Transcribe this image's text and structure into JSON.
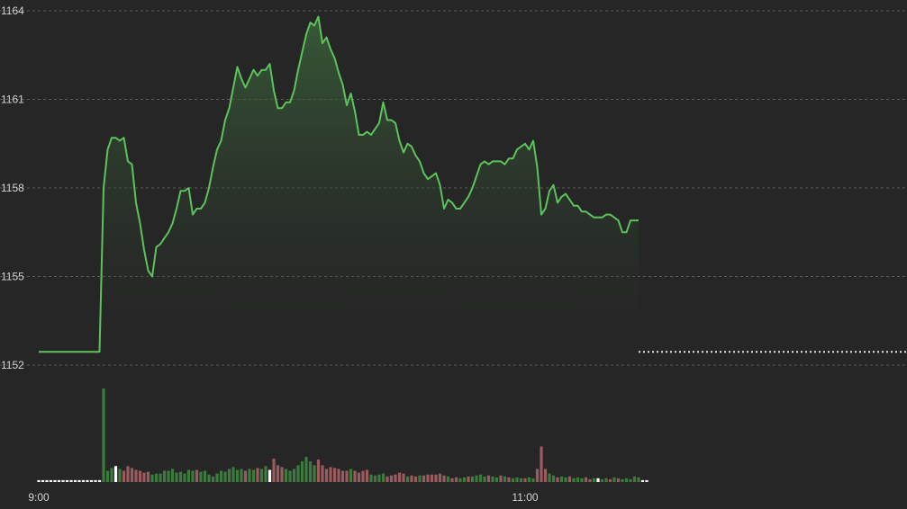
{
  "chart_data": {
    "type": "line",
    "title": "",
    "xlabel": "",
    "ylabel": "",
    "y_ticks": [
      "1164",
      "1161",
      "1158",
      "1155",
      "1152"
    ],
    "x_ticks": [
      "9:00",
      "11:00"
    ],
    "ylim": [
      1152,
      1164
    ],
    "reference_value": 1152.45,
    "grid": true,
    "colors": {
      "background": "#262626",
      "line": "#5cc35c",
      "area_top": "#3d6b3d",
      "up_volume": "#3d7a3d",
      "down_volume": "#9a5a5e",
      "neutral_volume": "#ffffff",
      "reference_line": "#e6e6e6"
    },
    "series": [
      {
        "values": [
          1152.45,
          1152.45,
          1152.45,
          1152.45,
          1152.45,
          1152.45,
          1152.45,
          1152.45,
          1152.45,
          1152.45,
          1152.45,
          1152.45,
          1152.45,
          1152.45,
          1152.45,
          1152.45,
          1158.0,
          1159.3,
          1159.7,
          1159.7,
          1159.6,
          1159.7,
          1158.9,
          1158.8,
          1157.5,
          1156.8,
          1155.9,
          1155.2,
          1155.0,
          1156.0,
          1156.1,
          1156.3,
          1156.5,
          1156.8,
          1157.3,
          1157.9,
          1157.9,
          1158.0,
          1157.1,
          1157.3,
          1157.3,
          1157.5,
          1158.0,
          1158.7,
          1159.3,
          1159.6,
          1160.3,
          1160.7,
          1161.4,
          1162.1,
          1161.7,
          1161.4,
          1161.7,
          1162.0,
          1161.8,
          1162.0,
          1162.0,
          1162.2,
          1161.3,
          1160.7,
          1160.7,
          1160.9,
          1160.9,
          1161.3,
          1162.0,
          1162.6,
          1163.2,
          1163.6,
          1163.5,
          1163.8,
          1162.9,
          1163.1,
          1162.7,
          1162.4,
          1161.9,
          1161.5,
          1160.8,
          1161.2,
          1160.6,
          1159.8,
          1159.8,
          1159.9,
          1159.8,
          1160.0,
          1160.2,
          1160.9,
          1160.3,
          1160.3,
          1160.2,
          1159.6,
          1159.2,
          1159.5,
          1159.4,
          1159.1,
          1158.9,
          1158.5,
          1158.3,
          1158.4,
          1158.5,
          1158.1,
          1157.3,
          1157.6,
          1157.5,
          1157.3,
          1157.3,
          1157.5,
          1157.7,
          1158.0,
          1158.4,
          1158.8,
          1158.9,
          1158.8,
          1158.9,
          1158.9,
          1158.9,
          1158.8,
          1159.0,
          1159.0,
          1159.3,
          1159.4,
          1159.5,
          1159.3,
          1159.6,
          1158.7,
          1157.1,
          1157.3,
          1157.9,
          1158.1,
          1157.5,
          1157.7,
          1157.8,
          1157.6,
          1157.4,
          1157.4,
          1157.2,
          1157.2,
          1157.1,
          1157.0,
          1157.0,
          1157.0,
          1157.1,
          1157.1,
          1157.0,
          1156.9,
          1156.5,
          1156.5,
          1156.9,
          1156.9,
          1156.9
        ]
      }
    ],
    "volume": {
      "values": [
        2,
        2,
        2,
        2,
        2,
        2,
        2,
        2,
        2,
        2,
        2,
        2,
        2,
        2,
        2,
        2,
        100,
        12,
        15,
        17,
        14,
        12,
        17,
        15,
        13,
        12,
        10,
        11,
        8,
        9,
        9,
        12,
        12,
        14,
        10,
        11,
        9,
        13,
        12,
        13,
        11,
        12,
        8,
        6,
        9,
        12,
        11,
        14,
        16,
        13,
        14,
        12,
        14,
        13,
        15,
        14,
        17,
        13,
        25,
        18,
        16,
        14,
        12,
        14,
        18,
        22,
        27,
        22,
        18,
        24,
        18,
        14,
        16,
        15,
        14,
        12,
        12,
        14,
        12,
        10,
        12,
        13,
        8,
        7,
        8,
        9,
        6,
        7,
        8,
        10,
        9,
        6,
        7,
        6,
        7,
        7,
        8,
        8,
        8,
        9,
        7,
        6,
        4,
        5,
        4,
        5,
        6,
        6,
        7,
        8,
        6,
        7,
        6,
        5,
        7,
        6,
        5,
        4,
        5,
        4,
        4,
        5,
        4,
        14,
        38,
        14,
        9,
        7,
        5,
        6,
        5,
        6,
        4,
        5,
        4,
        5,
        3,
        4,
        4,
        3,
        4,
        3,
        5,
        4,
        3,
        4,
        3,
        6,
        5,
        2,
        2
      ],
      "directions": [
        "n",
        "n",
        "n",
        "n",
        "n",
        "n",
        "n",
        "n",
        "n",
        "n",
        "n",
        "n",
        "n",
        "n",
        "n",
        "n",
        "u",
        "u",
        "u",
        "n",
        "u",
        "d",
        "d",
        "d",
        "d",
        "d",
        "d",
        "d",
        "u",
        "u",
        "u",
        "u",
        "u",
        "u",
        "u",
        "u",
        "u",
        "u",
        "u",
        "d",
        "u",
        "u",
        "u",
        "u",
        "u",
        "u",
        "u",
        "u",
        "u",
        "u",
        "u",
        "d",
        "u",
        "u",
        "d",
        "u",
        "u",
        "n",
        "d",
        "d",
        "d",
        "u",
        "u",
        "u",
        "u",
        "u",
        "u",
        "u",
        "u",
        "d",
        "d",
        "d",
        "d",
        "d",
        "d",
        "d",
        "d",
        "u",
        "d",
        "d",
        "d",
        "d",
        "u",
        "u",
        "u",
        "u",
        "d",
        "d",
        "d",
        "d",
        "d",
        "u",
        "d",
        "d",
        "u",
        "d",
        "d",
        "d",
        "d",
        "d",
        "d",
        "u",
        "d",
        "d",
        "u",
        "u",
        "d",
        "u",
        "u",
        "u",
        "u",
        "d",
        "u",
        "u",
        "d",
        "u",
        "d",
        "u",
        "u",
        "u",
        "d",
        "u",
        "u",
        "d",
        "d",
        "d",
        "u",
        "u",
        "d",
        "u",
        "u",
        "d",
        "u",
        "u",
        "u",
        "d",
        "d",
        "u",
        "n",
        "u",
        "u",
        "d",
        "u",
        "d",
        "u",
        "u",
        "u",
        "u",
        "u",
        "n",
        "n"
      ]
    }
  }
}
